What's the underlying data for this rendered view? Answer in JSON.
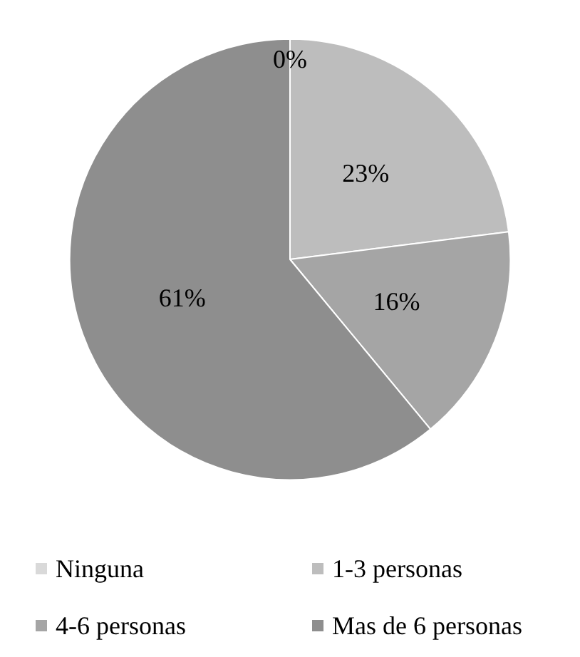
{
  "chart_data": {
    "type": "pie",
    "categories": [
      "Ninguna",
      "1-3 personas",
      "4-6 personas",
      "Mas de 6 personas"
    ],
    "values": [
      0,
      23,
      16,
      61
    ],
    "colors": [
      "#d9d9d9",
      "#bdbdbd",
      "#a5a5a5",
      "#8e8e8e"
    ],
    "value_labels": [
      "0%",
      "23%",
      "16%",
      "61%"
    ],
    "legend": "bottom"
  }
}
